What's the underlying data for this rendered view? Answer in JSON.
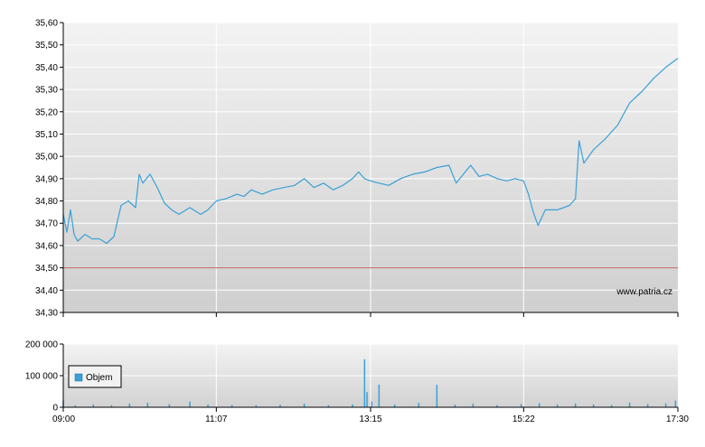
{
  "chart_data": [
    {
      "type": "line",
      "title": "",
      "xlabel": "",
      "ylabel": "",
      "x_ticks": [
        "09:00",
        "11:07",
        "13:15",
        "15:22",
        "17:30"
      ],
      "y_ticks": [
        "34,30",
        "34,40",
        "34,50",
        "34,60",
        "34,70",
        "34,80",
        "34,90",
        "35,00",
        "35,10",
        "35,20",
        "35,30",
        "35,40",
        "35,50",
        "35,60"
      ],
      "ylim": [
        34.3,
        35.6
      ],
      "grid": true,
      "reference_line": {
        "value": 34.5,
        "color": "#c06060"
      },
      "series": [
        {
          "color": "#3aa0d6",
          "points": [
            [
              "09:00",
              34.74
            ],
            [
              "09:03",
              34.66
            ],
            [
              "09:06",
              34.76
            ],
            [
              "09:09",
              34.65
            ],
            [
              "09:12",
              34.62
            ],
            [
              "09:18",
              34.65
            ],
            [
              "09:24",
              34.63
            ],
            [
              "09:30",
              34.63
            ],
            [
              "09:36",
              34.61
            ],
            [
              "09:42",
              34.64
            ],
            [
              "09:48",
              34.78
            ],
            [
              "09:54",
              34.8
            ],
            [
              "10:00",
              34.77
            ],
            [
              "10:03",
              34.92
            ],
            [
              "10:06",
              34.88
            ],
            [
              "10:12",
              34.92
            ],
            [
              "10:18",
              34.86
            ],
            [
              "10:24",
              34.79
            ],
            [
              "10:30",
              34.76
            ],
            [
              "10:36",
              34.74
            ],
            [
              "10:45",
              34.77
            ],
            [
              "10:54",
              34.74
            ],
            [
              "11:00",
              34.76
            ],
            [
              "11:07",
              34.8
            ],
            [
              "11:15",
              34.81
            ],
            [
              "11:24",
              34.83
            ],
            [
              "11:30",
              34.82
            ],
            [
              "11:36",
              34.85
            ],
            [
              "11:45",
              34.83
            ],
            [
              "11:54",
              34.85
            ],
            [
              "12:03",
              34.86
            ],
            [
              "12:12",
              34.87
            ],
            [
              "12:20",
              34.9
            ],
            [
              "12:28",
              34.86
            ],
            [
              "12:36",
              34.88
            ],
            [
              "12:44",
              34.85
            ],
            [
              "12:52",
              34.87
            ],
            [
              "13:00",
              34.9
            ],
            [
              "13:05",
              34.93
            ],
            [
              "13:10",
              34.9
            ],
            [
              "13:15",
              34.89
            ],
            [
              "13:22",
              34.88
            ],
            [
              "13:30",
              34.87
            ],
            [
              "13:40",
              34.9
            ],
            [
              "13:50",
              34.92
            ],
            [
              "14:00",
              34.93
            ],
            [
              "14:10",
              34.95
            ],
            [
              "14:20",
              34.96
            ],
            [
              "14:26",
              34.88
            ],
            [
              "14:32",
              34.92
            ],
            [
              "14:38",
              34.96
            ],
            [
              "14:45",
              34.91
            ],
            [
              "14:52",
              34.92
            ],
            [
              "15:00",
              34.9
            ],
            [
              "15:08",
              34.89
            ],
            [
              "15:15",
              34.9
            ],
            [
              "15:22",
              34.89
            ],
            [
              "15:26",
              34.83
            ],
            [
              "15:30",
              34.75
            ],
            [
              "15:34",
              34.69
            ],
            [
              "15:40",
              34.76
            ],
            [
              "15:50",
              34.76
            ],
            [
              "16:00",
              34.78
            ],
            [
              "16:05",
              34.81
            ],
            [
              "16:08",
              35.07
            ],
            [
              "16:12",
              34.97
            ],
            [
              "16:20",
              35.03
            ],
            [
              "16:30",
              35.08
            ],
            [
              "16:40",
              35.14
            ],
            [
              "16:50",
              35.24
            ],
            [
              "17:00",
              35.29
            ],
            [
              "17:10",
              35.35
            ],
            [
              "17:20",
              35.4
            ],
            [
              "17:30",
              35.44
            ]
          ]
        }
      ],
      "watermark": "www.patria.cz"
    },
    {
      "type": "bar",
      "title": "",
      "xlabel": "",
      "ylabel": "",
      "x_ticks": [
        "09:00",
        "11:07",
        "13:15",
        "15:22",
        "17:30"
      ],
      "y_ticks": [
        "0",
        "100 000",
        "200 000"
      ],
      "ylim": [
        0,
        200000
      ],
      "grid": true,
      "legend": {
        "placement": "top-left",
        "entries": [
          "Objem"
        ]
      },
      "series": [
        {
          "name": "Objem",
          "color": "#3aa0d6",
          "bars": [
            [
              "09:00",
              22000
            ],
            [
              "09:10",
              6000
            ],
            [
              "09:25",
              9000
            ],
            [
              "09:40",
              7000
            ],
            [
              "09:55",
              12000
            ],
            [
              "10:10",
              14000
            ],
            [
              "10:28",
              10000
            ],
            [
              "10:45",
              18000
            ],
            [
              "11:00",
              9000
            ],
            [
              "11:20",
              7000
            ],
            [
              "11:40",
              6000
            ],
            [
              "12:00",
              8000
            ],
            [
              "12:20",
              11000
            ],
            [
              "12:40",
              7000
            ],
            [
              "13:00",
              9000
            ],
            [
              "13:10",
              152000
            ],
            [
              "13:12",
              48000
            ],
            [
              "13:16",
              18000
            ],
            [
              "13:22",
              72000
            ],
            [
              "13:35",
              9000
            ],
            [
              "13:55",
              14000
            ],
            [
              "14:10",
              71000
            ],
            [
              "14:25",
              8000
            ],
            [
              "14:40",
              11000
            ],
            [
              "15:00",
              7000
            ],
            [
              "15:20",
              10000
            ],
            [
              "15:35",
              13000
            ],
            [
              "15:50",
              9000
            ],
            [
              "16:05",
              12000
            ],
            [
              "16:20",
              9000
            ],
            [
              "16:35",
              7000
            ],
            [
              "16:50",
              15000
            ],
            [
              "17:05",
              10000
            ],
            [
              "17:20",
              12000
            ],
            [
              "17:28",
              21000
            ]
          ]
        }
      ]
    }
  ]
}
